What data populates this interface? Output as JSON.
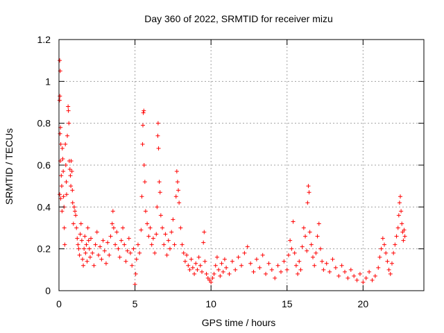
{
  "chart_data": {
    "type": "scatter",
    "title": "Day 360 of 2022, SRMTID for receiver mizu",
    "xlabel": "GPS time / hours",
    "ylabel": "SRMTID / TECUs",
    "xlim": [
      0,
      24
    ],
    "ylim": [
      0,
      1.2
    ],
    "xticks": [
      0,
      5,
      10,
      15,
      20
    ],
    "xtick_labels": [
      "0",
      "5",
      "10",
      "15",
      "20"
    ],
    "yticks": [
      0,
      0.2,
      0.4,
      0.6,
      0.8,
      1,
      1.2
    ],
    "ytick_labels": [
      "0",
      "0.2",
      "0.4",
      "0.6",
      "0.8",
      "1",
      "1.2"
    ],
    "grid": true,
    "marker": "+",
    "series": [
      {
        "name": "SRMTID",
        "color": "#ff0000",
        "points": [
          [
            0.05,
            1.1
          ],
          [
            0.08,
            1.05
          ],
          [
            0.06,
            0.93
          ],
          [
            0.04,
            0.91
          ],
          [
            0.1,
            0.78
          ],
          [
            0.07,
            0.75
          ],
          [
            0.12,
            0.7
          ],
          [
            0.09,
            0.62
          ],
          [
            0.15,
            0.55
          ],
          [
            0.05,
            0.46
          ],
          [
            0.11,
            0.44
          ],
          [
            0.18,
            0.5
          ],
          [
            0.22,
            0.68
          ],
          [
            0.25,
            0.63
          ],
          [
            0.28,
            0.57
          ],
          [
            0.2,
            0.38
          ],
          [
            0.3,
            0.45
          ],
          [
            0.33,
            0.4
          ],
          [
            0.35,
            0.3
          ],
          [
            0.38,
            0.22
          ],
          [
            0.42,
            0.7
          ],
          [
            0.45,
            0.6
          ],
          [
            0.48,
            0.52
          ],
          [
            0.5,
            0.46
          ],
          [
            0.55,
            0.74
          ],
          [
            0.6,
            0.88
          ],
          [
            0.62,
            0.86
          ],
          [
            0.65,
            0.8
          ],
          [
            0.68,
            0.62
          ],
          [
            0.72,
            0.58
          ],
          [
            0.75,
            0.55
          ],
          [
            0.78,
            0.5
          ],
          [
            0.8,
            0.62
          ],
          [
            0.85,
            0.57
          ],
          [
            0.88,
            0.48
          ],
          [
            0.9,
            0.42
          ],
          [
            0.95,
            0.32
          ],
          [
            1.0,
            0.4
          ],
          [
            1.05,
            0.38
          ],
          [
            1.1,
            0.36
          ],
          [
            1.15,
            0.3
          ],
          [
            1.2,
            0.25
          ],
          [
            1.25,
            0.22
          ],
          [
            1.3,
            0.2
          ],
          [
            1.35,
            0.17
          ],
          [
            1.4,
            0.27
          ],
          [
            1.45,
            0.32
          ],
          [
            1.5,
            0.24
          ],
          [
            1.55,
            0.15
          ],
          [
            1.6,
            0.12
          ],
          [
            1.65,
            0.2
          ],
          [
            1.7,
            0.26
          ],
          [
            1.75,
            0.18
          ],
          [
            1.8,
            0.22
          ],
          [
            1.85,
            0.14
          ],
          [
            1.9,
            0.3
          ],
          [
            1.95,
            0.24
          ],
          [
            2.0,
            0.2
          ],
          [
            2.05,
            0.16
          ],
          [
            2.1,
            0.25
          ],
          [
            2.2,
            0.18
          ],
          [
            2.3,
            0.12
          ],
          [
            2.4,
            0.22
          ],
          [
            2.5,
            0.28
          ],
          [
            2.6,
            0.17
          ],
          [
            2.7,
            0.21
          ],
          [
            2.8,
            0.15
          ],
          [
            2.9,
            0.24
          ],
          [
            3.0,
            0.19
          ],
          [
            3.1,
            0.13
          ],
          [
            3.2,
            0.23
          ],
          [
            3.3,
            0.17
          ],
          [
            3.4,
            0.26
          ],
          [
            3.5,
            0.32
          ],
          [
            3.55,
            0.38
          ],
          [
            3.6,
            0.3
          ],
          [
            3.7,
            0.22
          ],
          [
            3.8,
            0.28
          ],
          [
            3.9,
            0.2
          ],
          [
            4.0,
            0.16
          ],
          [
            4.1,
            0.24
          ],
          [
            4.2,
            0.3
          ],
          [
            4.3,
            0.22
          ],
          [
            4.4,
            0.14
          ],
          [
            4.5,
            0.19
          ],
          [
            4.6,
            0.25
          ],
          [
            4.7,
            0.18
          ],
          [
            4.8,
            0.12
          ],
          [
            4.9,
            0.2
          ],
          [
            5.0,
            0.03
          ],
          [
            5.05,
            0.08
          ],
          [
            5.1,
            0.15
          ],
          [
            5.2,
            0.22
          ],
          [
            5.3,
            0.18
          ],
          [
            5.4,
            0.29
          ],
          [
            5.45,
            0.45
          ],
          [
            5.5,
            0.7
          ],
          [
            5.52,
            0.79
          ],
          [
            5.55,
            0.85
          ],
          [
            5.58,
            0.86
          ],
          [
            5.6,
            0.6
          ],
          [
            5.65,
            0.52
          ],
          [
            5.7,
            0.38
          ],
          [
            5.8,
            0.32
          ],
          [
            5.9,
            0.26
          ],
          [
            6.0,
            0.3
          ],
          [
            6.1,
            0.22
          ],
          [
            6.2,
            0.25
          ],
          [
            6.3,
            0.18
          ],
          [
            6.4,
            0.27
          ],
          [
            6.45,
            0.4
          ],
          [
            6.5,
            0.74
          ],
          [
            6.52,
            0.8
          ],
          [
            6.55,
            0.68
          ],
          [
            6.6,
            0.52
          ],
          [
            6.65,
            0.47
          ],
          [
            6.7,
            0.36
          ],
          [
            6.8,
            0.3
          ],
          [
            6.9,
            0.22
          ],
          [
            7.0,
            0.27
          ],
          [
            7.1,
            0.17
          ],
          [
            7.2,
            0.24
          ],
          [
            7.3,
            0.2
          ],
          [
            7.4,
            0.28
          ],
          [
            7.5,
            0.34
          ],
          [
            7.6,
            0.22
          ],
          [
            7.7,
            0.45
          ],
          [
            7.75,
            0.57
          ],
          [
            7.8,
            0.52
          ],
          [
            7.85,
            0.48
          ],
          [
            7.9,
            0.42
          ],
          [
            8.0,
            0.3
          ],
          [
            8.1,
            0.22
          ],
          [
            8.2,
            0.18
          ],
          [
            8.3,
            0.14
          ],
          [
            8.4,
            0.17
          ],
          [
            8.5,
            0.12
          ],
          [
            8.6,
            0.1
          ],
          [
            8.7,
            0.15
          ],
          [
            8.8,
            0.11
          ],
          [
            8.9,
            0.08
          ],
          [
            9.0,
            0.13
          ],
          [
            9.1,
            0.1
          ],
          [
            9.2,
            0.16
          ],
          [
            9.3,
            0.12
          ],
          [
            9.4,
            0.09
          ],
          [
            9.5,
            0.23
          ],
          [
            9.55,
            0.28
          ],
          [
            9.6,
            0.14
          ],
          [
            9.7,
            0.08
          ],
          [
            9.8,
            0.06
          ],
          [
            9.9,
            0.05
          ],
          [
            10.0,
            0.04
          ],
          [
            10.1,
            0.06
          ],
          [
            10.2,
            0.08
          ],
          [
            10.3,
            0.12
          ],
          [
            10.4,
            0.16
          ],
          [
            10.5,
            0.1
          ],
          [
            10.6,
            0.07
          ],
          [
            10.7,
            0.13
          ],
          [
            10.8,
            0.09
          ],
          [
            10.9,
            0.15
          ],
          [
            11.0,
            0.11
          ],
          [
            11.2,
            0.08
          ],
          [
            11.4,
            0.14
          ],
          [
            11.6,
            0.1
          ],
          [
            11.8,
            0.16
          ],
          [
            12.0,
            0.12
          ],
          [
            12.2,
            0.18
          ],
          [
            12.4,
            0.21
          ],
          [
            12.6,
            0.13
          ],
          [
            12.8,
            0.09
          ],
          [
            13.0,
            0.15
          ],
          [
            13.2,
            0.11
          ],
          [
            13.4,
            0.17
          ],
          [
            13.6,
            0.08
          ],
          [
            13.8,
            0.13
          ],
          [
            14.0,
            0.1
          ],
          [
            14.2,
            0.06
          ],
          [
            14.4,
            0.12
          ],
          [
            14.6,
            0.09
          ],
          [
            14.8,
            0.14
          ],
          [
            15.0,
            0.1
          ],
          [
            15.1,
            0.17
          ],
          [
            15.2,
            0.24
          ],
          [
            15.3,
            0.2
          ],
          [
            15.4,
            0.33
          ],
          [
            15.5,
            0.18
          ],
          [
            15.6,
            0.12
          ],
          [
            15.7,
            0.08
          ],
          [
            15.8,
            0.14
          ],
          [
            15.9,
            0.1
          ],
          [
            16.0,
            0.21
          ],
          [
            16.1,
            0.3
          ],
          [
            16.2,
            0.26
          ],
          [
            16.3,
            0.19
          ],
          [
            16.35,
            0.42
          ],
          [
            16.4,
            0.5
          ],
          [
            16.45,
            0.47
          ],
          [
            16.5,
            0.28
          ],
          [
            16.6,
            0.22
          ],
          [
            16.7,
            0.16
          ],
          [
            16.8,
            0.12
          ],
          [
            16.9,
            0.18
          ],
          [
            17.0,
            0.26
          ],
          [
            17.1,
            0.32
          ],
          [
            17.2,
            0.2
          ],
          [
            17.3,
            0.14
          ],
          [
            17.4,
            0.1
          ],
          [
            17.6,
            0.13
          ],
          [
            17.8,
            0.09
          ],
          [
            18.0,
            0.15
          ],
          [
            18.2,
            0.11
          ],
          [
            18.4,
            0.07
          ],
          [
            18.6,
            0.12
          ],
          [
            18.8,
            0.09
          ],
          [
            19.0,
            0.06
          ],
          [
            19.2,
            0.1
          ],
          [
            19.4,
            0.07
          ],
          [
            19.6,
            0.05
          ],
          [
            19.8,
            0.08
          ],
          [
            20.0,
            0.04
          ],
          [
            20.2,
            0.06
          ],
          [
            20.4,
            0.09
          ],
          [
            20.6,
            0.05
          ],
          [
            20.8,
            0.07
          ],
          [
            21.0,
            0.11
          ],
          [
            21.1,
            0.16
          ],
          [
            21.2,
            0.2
          ],
          [
            21.3,
            0.25
          ],
          [
            21.4,
            0.22
          ],
          [
            21.5,
            0.18
          ],
          [
            21.6,
            0.14
          ],
          [
            21.7,
            0.1
          ],
          [
            21.8,
            0.08
          ],
          [
            21.9,
            0.13
          ],
          [
            22.0,
            0.18
          ],
          [
            22.1,
            0.22
          ],
          [
            22.2,
            0.26
          ],
          [
            22.3,
            0.3
          ],
          [
            22.35,
            0.36
          ],
          [
            22.4,
            0.42
          ],
          [
            22.45,
            0.45
          ],
          [
            22.5,
            0.38
          ],
          [
            22.55,
            0.32
          ],
          [
            22.6,
            0.28
          ],
          [
            22.65,
            0.24
          ],
          [
            22.7,
            0.29
          ],
          [
            22.75,
            0.26
          ]
        ]
      }
    ]
  }
}
